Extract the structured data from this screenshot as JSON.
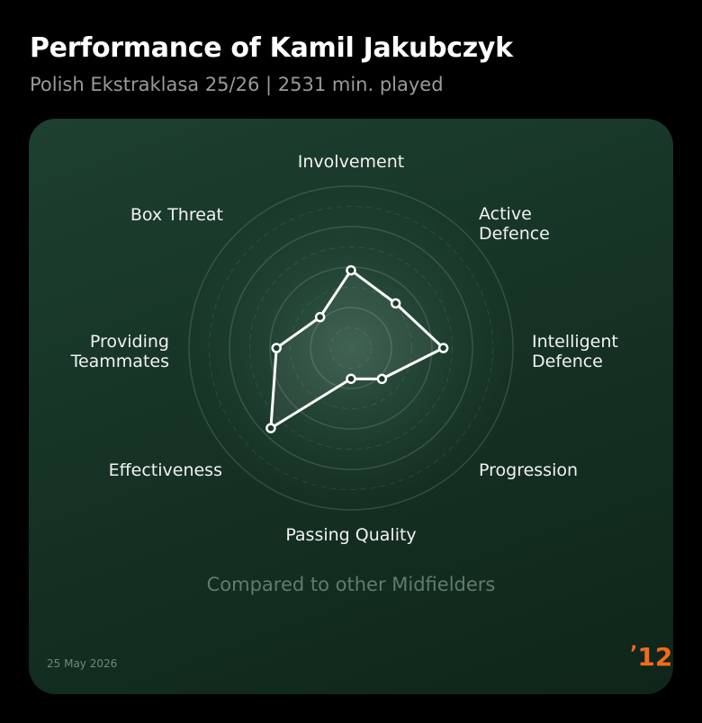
{
  "chart_data": {
    "type": "radar",
    "title": "Performance of Kamil Jakubczyk",
    "subtitle": "Polish Ekstraklasa 25/26 | 2531 min. played",
    "categories": [
      "Involvement",
      "Active Defence",
      "Intelligent Defence",
      "Progression",
      "Passing Quality",
      "Effectiveness",
      "Providing Teammates",
      "Box Threat"
    ],
    "values": [
      48,
      39,
      57,
      27,
      19,
      70,
      46,
      27
    ],
    "rlim": [
      0,
      100
    ],
    "rticks": [
      25,
      50,
      75,
      100
    ],
    "minor_rticks": [
      12.5,
      37.5,
      62.5,
      87.5
    ],
    "color": "#ffffff",
    "footnote": "Compared to other Midfielders",
    "date": "25 May 2026",
    "logo": "12"
  }
}
